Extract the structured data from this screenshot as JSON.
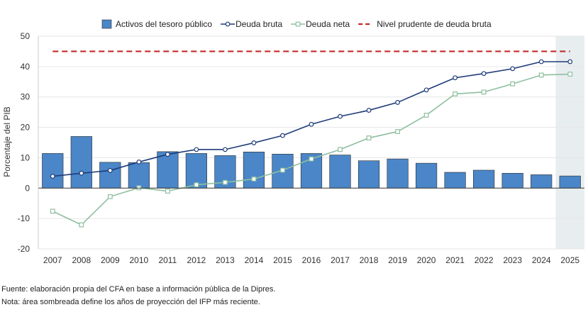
{
  "chart_data": {
    "type": "bar+line",
    "categories": [
      "2007",
      "2008",
      "2009",
      "2010",
      "2011",
      "2012",
      "2013",
      "2014",
      "2015",
      "2016",
      "2017",
      "2018",
      "2019",
      "2020",
      "2021",
      "2022",
      "2023",
      "2024",
      "2025"
    ],
    "series": [
      {
        "name": "Activos del tesoro público",
        "kind": "bar",
        "color": "#4a86c8",
        "values": [
          11.4,
          17.0,
          8.5,
          8.4,
          12.0,
          11.4,
          10.7,
          11.9,
          11.2,
          11.4,
          10.9,
          9.0,
          9.6,
          8.2,
          5.2,
          5.9,
          4.9,
          4.4,
          4.0
        ]
      },
      {
        "name": "Deuda bruta",
        "kind": "line",
        "color": "#1f3c7a",
        "values": [
          3.9,
          4.9,
          5.8,
          8.6,
          11.1,
          12.7,
          12.7,
          14.9,
          17.3,
          21.0,
          23.6,
          25.6,
          28.2,
          32.3,
          36.3,
          37.7,
          39.3,
          41.6,
          41.6
        ]
      },
      {
        "name": "Deuda neta",
        "kind": "line",
        "color": "#8fbf9f",
        "values": [
          -7.6,
          -12.1,
          -2.8,
          0.1,
          -1.0,
          1.1,
          1.9,
          3.0,
          5.9,
          9.6,
          12.7,
          16.5,
          18.6,
          24.0,
          31.0,
          31.6,
          34.3,
          37.2,
          37.5
        ]
      },
      {
        "name": "Nivel prudente de deuda bruta",
        "kind": "dashed-line",
        "color": "#c62828",
        "values": [
          45,
          45,
          45,
          45,
          45,
          45,
          45,
          45,
          45,
          45,
          45,
          45,
          45,
          45,
          45,
          45,
          45,
          45,
          45
        ]
      }
    ],
    "ylabel": "Porcentaje del PIB",
    "ylim": [
      -20,
      50
    ],
    "yticks": [
      -20,
      -10,
      0,
      10,
      20,
      30,
      40,
      50
    ],
    "shaded_period": [
      "2025"
    ],
    "shade_color": "#e8edf0",
    "legend_position": "top"
  },
  "notes": {
    "source": "Fuente: elaboración propia del CFA en base a información pública de la Dipres.",
    "note": "Nota: área sombreada define los años de proyección del IFP más reciente."
  }
}
